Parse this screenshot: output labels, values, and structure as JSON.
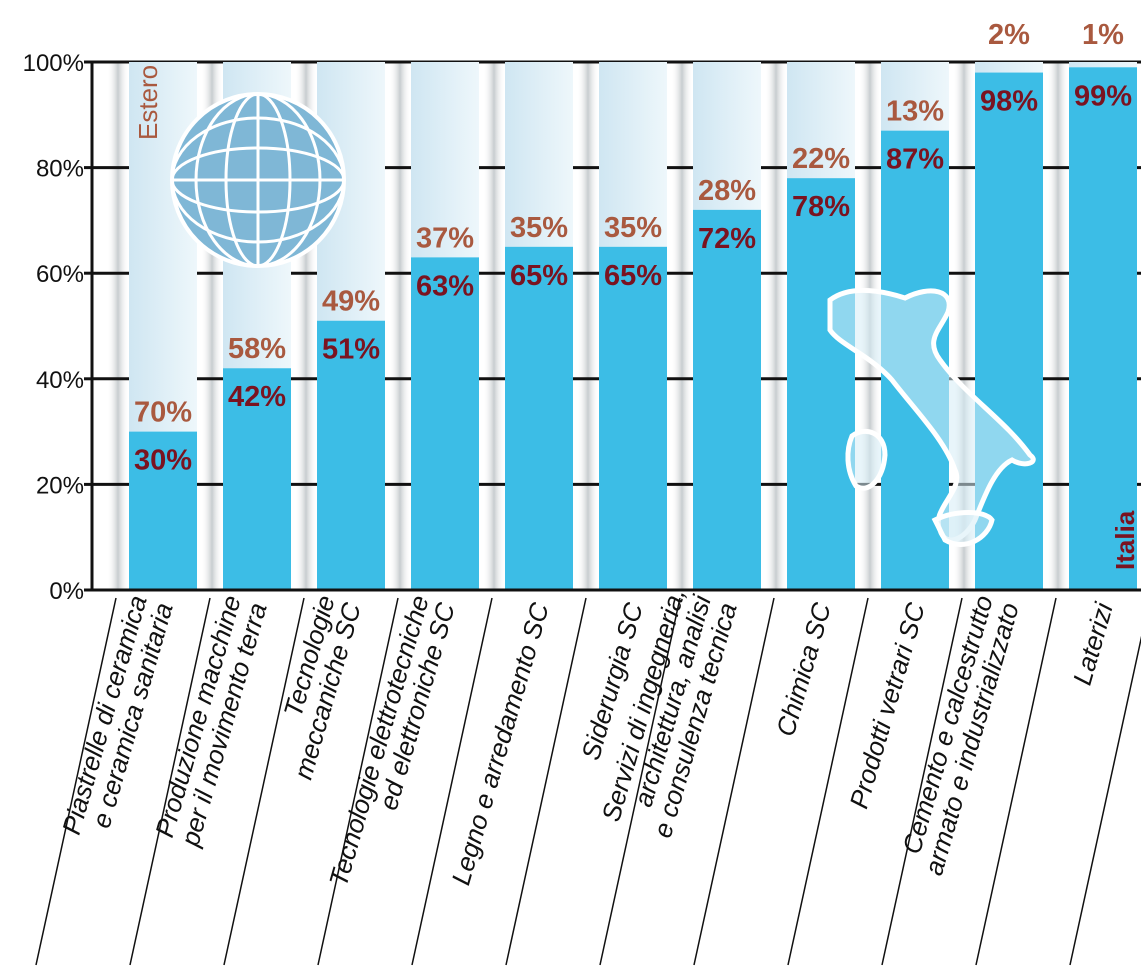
{
  "chart_data": {
    "type": "bar",
    "stacked": true,
    "orientation": "vertical",
    "y_unit": "percent",
    "ylim": [
      0,
      100
    ],
    "y_ticks": [
      "0%",
      "20%",
      "40%",
      "60%",
      "80%",
      "100%"
    ],
    "grid": true,
    "categories": [
      [
        "Piastrelle di ceramica",
        "e ceramica sanitaria"
      ],
      [
        "Produzione macchine",
        "per il movimento terra"
      ],
      [
        "Tecnologie",
        "meccaniche SC"
      ],
      [
        "Tecnologie elettrotecniche",
        "ed elettroniche SC"
      ],
      [
        "Legno e arredamento SC"
      ],
      [
        "Siderurgia SC"
      ],
      [
        "Servizi di ingegneria,",
        "architettura, analisi",
        "e consulenza tecnica"
      ],
      [
        "Chimica SC"
      ],
      [
        "Prodotti vetrari SC"
      ],
      [
        "Cemento e calcestrutto",
        "armato e industrializzato"
      ],
      [
        "Laterizi"
      ]
    ],
    "series": [
      {
        "name": "Italia",
        "values": [
          30,
          42,
          51,
          63,
          65,
          65,
          72,
          78,
          87,
          98,
          99
        ],
        "labels": [
          "30%",
          "42%",
          "51%",
          "63%",
          "65%",
          "65%",
          "72%",
          "78%",
          "87%",
          "98%",
          "99%"
        ]
      },
      {
        "name": "Estero",
        "values": [
          70,
          58,
          49,
          37,
          35,
          35,
          28,
          22,
          13,
          2,
          1
        ],
        "labels": [
          "70%",
          "58%",
          "49%",
          "37%",
          "35%",
          "35%",
          "28%",
          "22%",
          "13%",
          "2%",
          "1%"
        ]
      }
    ],
    "colors": {
      "italia_bar": "#3cbde6",
      "estero_bar": "#daedf6",
      "italia_label": "#7a1320",
      "estero_label": "#a9593f",
      "grid": "#111111"
    }
  }
}
